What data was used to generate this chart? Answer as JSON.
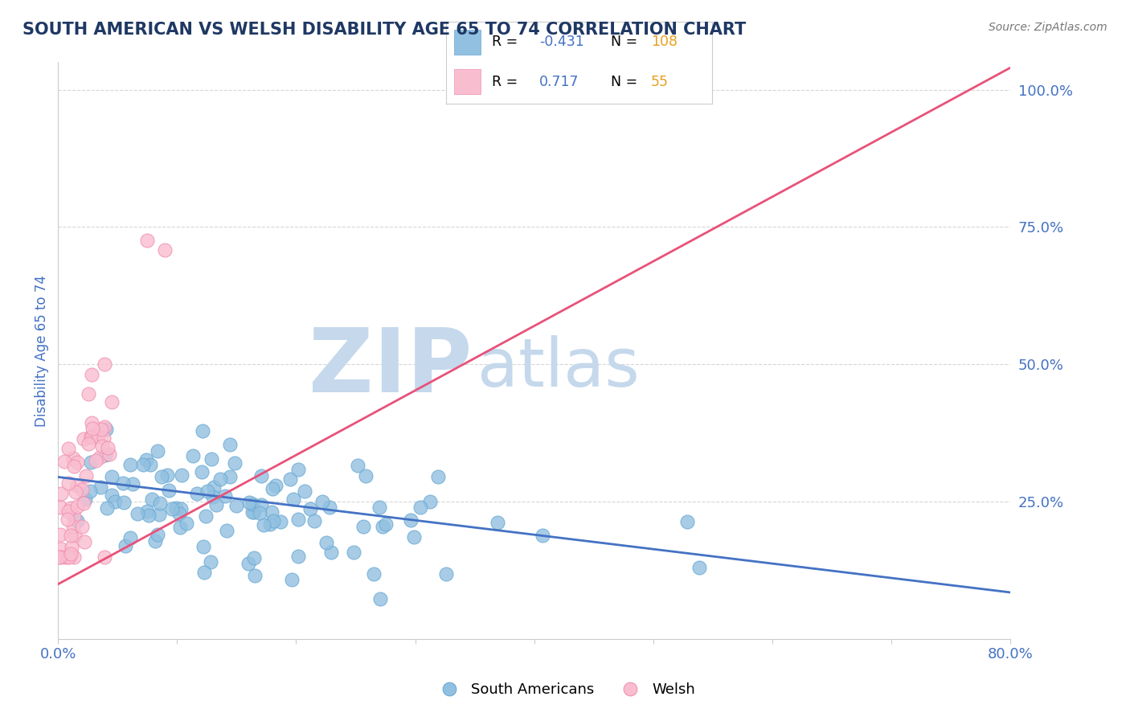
{
  "title": "SOUTH AMERICAN VS WELSH DISABILITY AGE 65 TO 74 CORRELATION CHART",
  "source_text": "Source: ZipAtlas.com",
  "ylabel": "Disability Age 65 to 74",
  "xmin": 0.0,
  "xmax": 0.8,
  "ymin": 0.0,
  "ymax": 1.05,
  "xticks": [
    0.0,
    0.1,
    0.2,
    0.3,
    0.4,
    0.5,
    0.6,
    0.7,
    0.8
  ],
  "ytick_vals": [
    0.25,
    0.5,
    0.75,
    1.0
  ],
  "ytick_labels": [
    "25.0%",
    "50.0%",
    "75.0%",
    "100.0%"
  ],
  "sa_R": -0.431,
  "sa_N": 108,
  "welsh_R": 0.717,
  "welsh_N": 55,
  "sa_color": "#92C0E0",
  "sa_edge_color": "#6AAAD4",
  "sa_line_color": "#4472C4",
  "welsh_color": "#F9BDD0",
  "welsh_edge_color": "#F090B0",
  "welsh_line_color": "#E8527A",
  "watermark_zip_color": "#C5D8EC",
  "watermark_atlas_color": "#C5D8EC",
  "title_color": "#1F3864",
  "tick_color": "#4472C4",
  "grid_color": "#BBBBBB",
  "sa_seed": 42,
  "welsh_seed": 7,
  "legend_r_color": "#4472C4",
  "legend_n_color": "#E8A020",
  "sa_line_x0": 0.0,
  "sa_line_x1": 0.8,
  "sa_line_y0": 0.295,
  "sa_line_y1": 0.085,
  "welsh_line_x0": 0.0,
  "welsh_line_x1": 0.8,
  "welsh_line_y0": 0.1,
  "welsh_line_y1": 1.04
}
